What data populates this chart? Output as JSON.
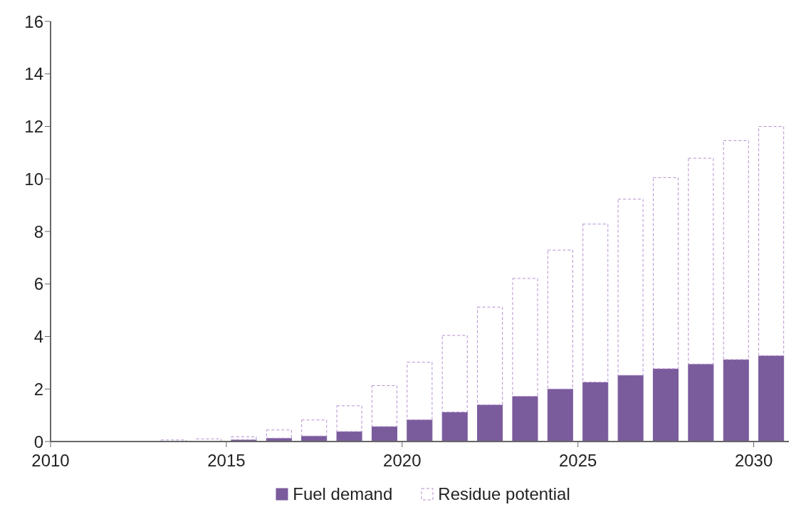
{
  "chart_data": {
    "type": "bar",
    "stacked": true,
    "x": [
      2010.5,
      2011.5,
      2012.5,
      2013.5,
      2014.5,
      2015.5,
      2016.5,
      2017.5,
      2018.5,
      2019.5,
      2020.5,
      2021.5,
      2022.5,
      2023.5,
      2024.5,
      2025.5,
      2026.5,
      2027.5,
      2028.5,
      2029.5,
      2030.5
    ],
    "series": [
      {
        "name": "Fuel demand",
        "color": "#7a5b9c",
        "values": [
          0,
          0,
          0,
          0,
          0,
          0.07,
          0.13,
          0.21,
          0.38,
          0.57,
          0.83,
          1.12,
          1.4,
          1.72,
          2.0,
          2.26,
          2.52,
          2.77,
          2.95,
          3.12,
          3.27
        ]
      },
      {
        "name": "Residue potential",
        "color": "#b48fd0",
        "line_style": "dashed",
        "values": [
          0,
          0,
          0,
          0.06,
          0.1,
          0.11,
          0.31,
          0.61,
          0.98,
          1.56,
          2.19,
          2.92,
          3.72,
          4.49,
          5.29,
          6.02,
          6.71,
          7.28,
          7.84,
          8.34,
          8.73
        ]
      }
    ],
    "xlim": [
      2010,
      2031
    ],
    "xticks": [
      2010,
      2015,
      2020,
      2025,
      2030
    ],
    "ylim": [
      0,
      16
    ],
    "yticks": [
      0,
      2,
      4,
      6,
      8,
      10,
      12,
      14,
      16
    ],
    "legend": "bottom"
  }
}
